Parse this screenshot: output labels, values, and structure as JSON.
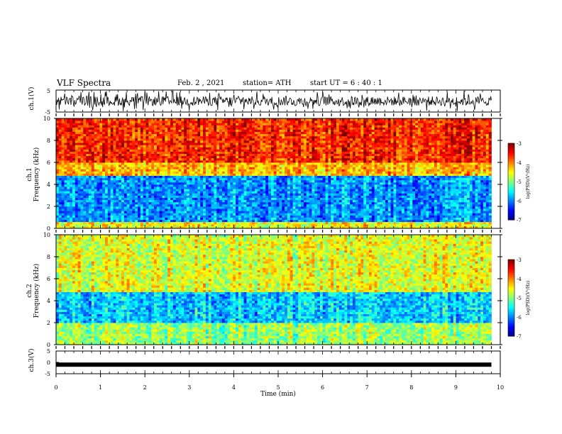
{
  "header": {
    "title": "VLF Spectra",
    "date": "Feb. 2 , 2021",
    "station": "station= ATH",
    "start": "start  UT  =   6 : 40 : 1"
  },
  "chart_data": [
    {
      "type": "line",
      "name": "ch1-waveform",
      "ylabel": "ch.1(V)",
      "ylim": [
        -5,
        5
      ],
      "yticks": [
        "5",
        "-5"
      ],
      "xlim": [
        0,
        10
      ]
    },
    {
      "type": "heatmap",
      "name": "ch1-spectrogram",
      "ylabel": "ch.1",
      "ylabel2": "Frequency (kHz)",
      "ylim": [
        0,
        10
      ],
      "yticks": [
        "0",
        "2",
        "4",
        "6",
        "8",
        "10"
      ],
      "xlim": [
        0,
        10
      ],
      "bands": [
        {
          "from": 0,
          "to": 0.7,
          "level": -4.5
        },
        {
          "from": 0.7,
          "to": 4.7,
          "level": -5.9
        },
        {
          "from": 4.7,
          "to": 6.0,
          "level": -4.2
        },
        {
          "from": 6.0,
          "to": 10,
          "level": -3.6
        }
      ],
      "colorbar": {
        "label": "log(PSD)(V²/Hz)",
        "range": [
          -7,
          -3
        ],
        "ticks": [
          "-3",
          "-4",
          "-5",
          "-6",
          "-7"
        ]
      }
    },
    {
      "type": "heatmap",
      "name": "ch2-spectrogram",
      "ylabel": "ch.2",
      "ylabel2": "Frequency (kHz)",
      "ylim": [
        0,
        10
      ],
      "yticks": [
        "0",
        "2",
        "4",
        "6",
        "8",
        "10"
      ],
      "xlim": [
        0,
        10
      ],
      "bands": [
        {
          "from": 0,
          "to": 2.0,
          "level": -4.9
        },
        {
          "from": 2.0,
          "to": 4.7,
          "level": -5.7
        },
        {
          "from": 4.7,
          "to": 10,
          "level": -4.6
        }
      ],
      "colorbar": {
        "label": "log(PSD)(V²/Hz)",
        "range": [
          -7,
          -3
        ],
        "ticks": [
          "-3",
          "-4",
          "-5",
          "-6",
          "-7"
        ]
      }
    },
    {
      "type": "line",
      "name": "ch3-waveform",
      "ylabel": "ch.3(V)",
      "ylim": [
        -5,
        5
      ],
      "yticks": [
        "5",
        "0",
        "-5"
      ],
      "xlim": [
        0,
        10
      ],
      "level": -1
    }
  ],
  "xaxis": {
    "label": "Time  (min)",
    "ticks": [
      "0",
      "1",
      "2",
      "3",
      "4",
      "5",
      "6",
      "7",
      "8",
      "9",
      "10"
    ],
    "data_end": 9.8
  }
}
